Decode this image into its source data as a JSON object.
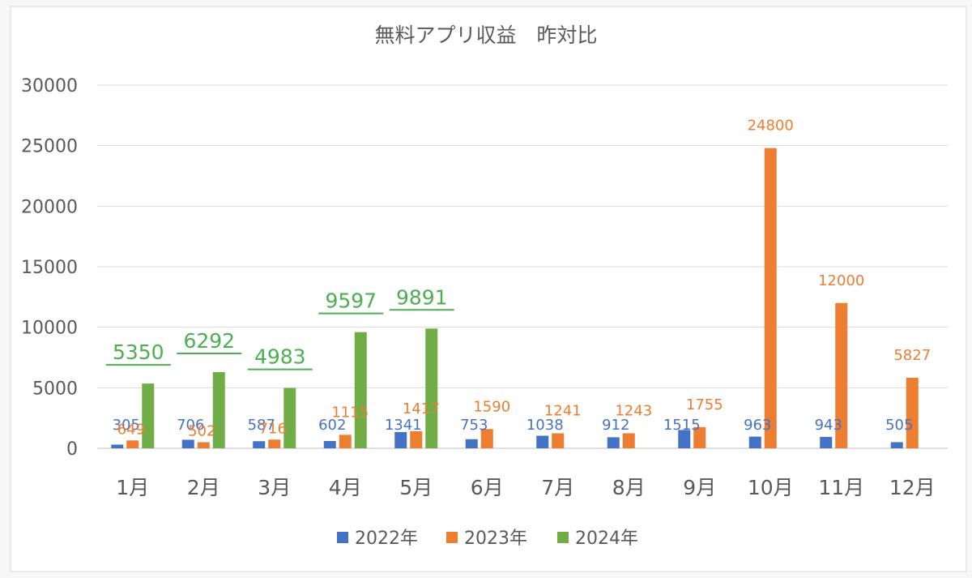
{
  "chart_data": {
    "type": "bar",
    "title": "無料アプリ収益　昨対比",
    "xlabel": "",
    "ylabel": "",
    "categories": [
      "1月",
      "2月",
      "3月",
      "4月",
      "5月",
      "6月",
      "7月",
      "8月",
      "9月",
      "10月",
      "11月",
      "12月"
    ],
    "series": [
      {
        "name": "2022年",
        "color": "#4472C4",
        "values": [
          305,
          706,
          587,
          602,
          1341,
          753,
          1038,
          912,
          1515,
          963,
          943,
          505
        ]
      },
      {
        "name": "2023年",
        "color": "#ED7D31",
        "values": [
          649,
          502,
          716,
          1115,
          1417,
          1590,
          1241,
          1243,
          1755,
          24800,
          12000,
          5827
        ]
      },
      {
        "name": "2024年",
        "color": "#70AD47",
        "values": [
          5350,
          6292,
          4983,
          9597,
          9891,
          null,
          null,
          null,
          null,
          null,
          null,
          null
        ]
      }
    ],
    "ylim": [
      0,
      30000
    ],
    "yticks": [
      0,
      5000,
      10000,
      15000,
      20000,
      25000,
      30000
    ],
    "grid": true,
    "legend": "bottom",
    "label_colors": {
      "2022年": "#4472C4",
      "2023年": "#ED7D31",
      "2024年": "#4CAF50"
    }
  }
}
